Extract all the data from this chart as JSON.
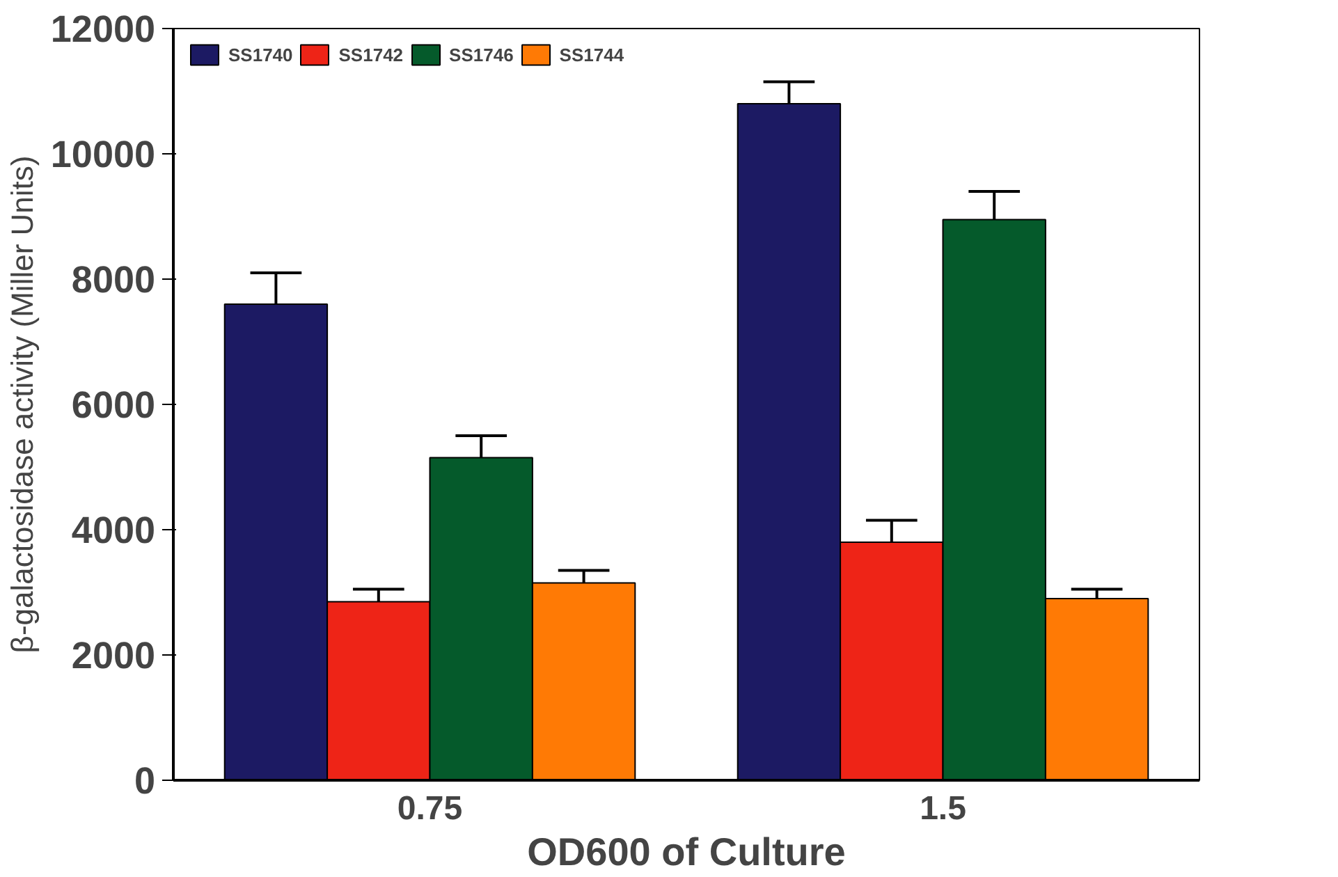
{
  "chart_data": {
    "type": "bar",
    "xlabel": "OD600 of Culture",
    "ylabel": "β-galactosidase activity (Miller Units)",
    "categories": [
      "0.75",
      "1.5"
    ],
    "series": [
      {
        "name": "SS1740",
        "color": "#1c1a63",
        "values": [
          7600,
          10800
        ],
        "errors": [
          [
            7600,
            8100
          ],
          [
            10800,
            11150
          ]
        ]
      },
      {
        "name": "SS1742",
        "color": "#ee2417",
        "values": [
          2850,
          3800
        ],
        "errors": [
          [
            2850,
            3050
          ],
          [
            3800,
            4150
          ]
        ]
      },
      {
        "name": "SS1746",
        "color": "#055a2b",
        "values": [
          5150,
          8950
        ],
        "errors": [
          [
            5150,
            5500
          ],
          [
            8950,
            9400
          ]
        ]
      },
      {
        "name": "SS1744",
        "color": "#ff7a05",
        "values": [
          3150,
          2900
        ],
        "errors": [
          [
            3150,
            3350
          ],
          [
            2900,
            3050
          ]
        ]
      }
    ],
    "ylim": [
      0,
      12000
    ],
    "yticks": [
      0,
      2000,
      4000,
      6000,
      8000,
      10000,
      12000
    ],
    "grid": false,
    "legend": "top left"
  }
}
